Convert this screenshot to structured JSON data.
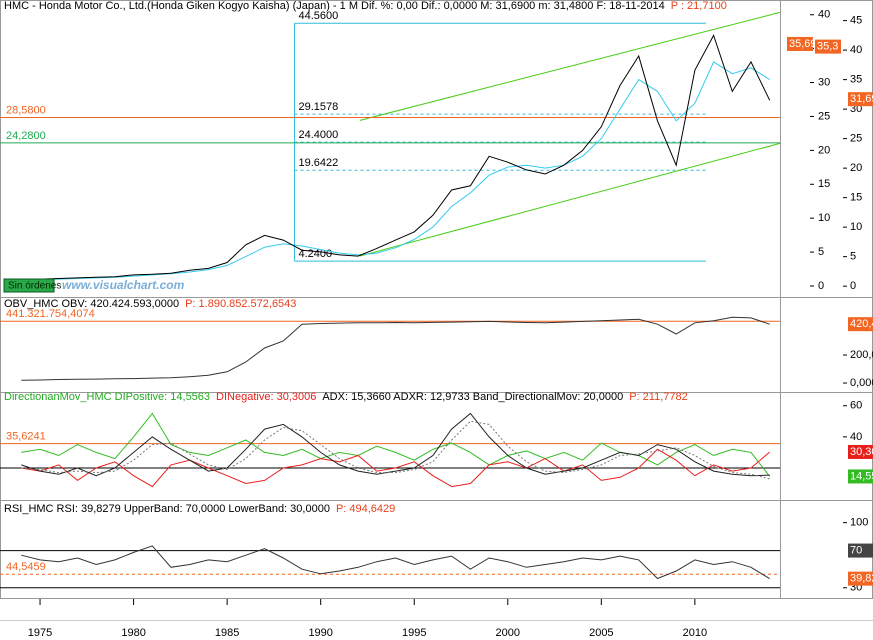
{
  "chart_data": [
    {
      "type": "line",
      "title_parts": [
        {
          "text": "HMC - Honda Motor Co., Ltd.(Honda Giken Kogyo Kaisha) (Japan) - 1 M  Dif. %: 0,00  Dif.: 0,0000  M: 31,6900  m: 31,4800  F: 18-11-2014",
          "color": "#000000"
        },
        {
          "text": "P : 21,7100",
          "color": "#e8401c"
        }
      ],
      "x": [
        1974,
        1975,
        1976,
        1977,
        1978,
        1979,
        1980,
        1981,
        1982,
        1983,
        1984,
        1985,
        1986,
        1987,
        1988,
        1989,
        1990,
        1991,
        1992,
        1993,
        1994,
        1995,
        1996,
        1997,
        1998,
        1999,
        2000,
        2001,
        2002,
        2003,
        2004,
        2005,
        2006,
        2007,
        2008,
        2009,
        2010,
        2011,
        2012,
        2013,
        2014
      ],
      "xlim": [
        1972.86,
        2014.55
      ],
      "series": [
        {
          "color": "#33ccee",
          "values": [
            1.0,
            1.1,
            1.2,
            1.3,
            1.4,
            1.5,
            1.7,
            1.9,
            2.1,
            2.4,
            2.8,
            3.5,
            5.0,
            6.6,
            7.2,
            6.8,
            6.2,
            5.6,
            5.3,
            5.6,
            6.5,
            7.9,
            10,
            13.5,
            15.8,
            18.8,
            20.2,
            20.5,
            20,
            20.5,
            22,
            25,
            30,
            35,
            33,
            28,
            31,
            38,
            36,
            37,
            35
          ]
        },
        {
          "color": "#000000",
          "values": [
            1.0,
            1.2,
            1.3,
            1.4,
            1.5,
            1.6,
            1.9,
            2.0,
            2.2,
            2.7,
            3.0,
            4.0,
            7.0,
            8.6,
            7.8,
            6.1,
            5.8,
            5.3,
            5.1,
            6.4,
            7.8,
            9.2,
            12,
            16.3,
            17,
            22,
            21,
            19.7,
            19,
            20.5,
            23,
            27,
            34,
            39,
            28,
            20.5,
            36.6,
            42.5,
            33,
            38,
            31.5
          ]
        }
      ],
      "ylim": [
        -1.5,
        46.8
      ],
      "yticks": [
        0,
        5,
        10,
        15,
        20,
        25,
        30,
        35,
        40,
        45
      ],
      "y2lim": [
        -1.33,
        40.7
      ],
      "y2ticks": [
        0,
        5,
        10,
        15,
        20,
        25,
        30,
        35,
        40
      ],
      "fib": {
        "x": [
          1988.6,
          2010.6
        ],
        "color": "#33bbdd",
        "levels": [
          {
            "value": 44.56,
            "label": "44.5600"
          },
          {
            "value": 29.1578,
            "label": "29.1578"
          },
          {
            "value": 24.4,
            "label": "24.4000"
          },
          {
            "value": 19.6422,
            "label": "19.6422"
          },
          {
            "value": 4.24,
            "label": "4.2400"
          }
        ]
      },
      "trend_lines": [
        {
          "x": [
            1992.1,
            2014.55
          ],
          "values": [
            28.1,
            46.4
          ],
          "color": "#44cc11"
        },
        {
          "x": [
            1992.1,
            2014.55
          ],
          "values": [
            5.1,
            24.2
          ],
          "color": "#44cc11"
        }
      ],
      "hlines": [
        {
          "value": 28.58,
          "label": "28,5800",
          "color": "#f26522"
        },
        {
          "value": 24.28,
          "label": "24,2800",
          "color": "#22aa55"
        }
      ],
      "markers": [
        {
          "value": 35.69,
          "label": "35,69",
          "axis": "y2",
          "color": "#f26522"
        },
        {
          "value": 35.3,
          "label": "35,3",
          "axis": "y2",
          "color": "#f26522"
        },
        {
          "value": 31.69,
          "label": "31,69",
          "axis": "y",
          "color": "#f26522"
        }
      ],
      "status": "Sin órdenes",
      "watermark": "www.visualchart.com"
    },
    {
      "type": "line",
      "title_parts": [
        {
          "text": "OBV_HMC OBV: 420.424.593,0000",
          "color": "#000000"
        },
        {
          "text": "P: 1.890.852.572,6543",
          "color": "#e8401c"
        }
      ],
      "x": [
        1974,
        1975,
        1976,
        1977,
        1978,
        1979,
        1980,
        1981,
        1982,
        1983,
        1984,
        1985,
        1986,
        1987,
        1988,
        1989,
        1990,
        1991,
        1992,
        1993,
        1994,
        1995,
        1996,
        1997,
        1998,
        1999,
        2000,
        2001,
        2002,
        2003,
        2004,
        2005,
        2006,
        2007,
        2008,
        2009,
        2010,
        2011,
        2012,
        2013,
        2014
      ],
      "xlim": [
        1972.86,
        2014.55
      ],
      "series": [
        {
          "color": "#333333",
          "values": [
            20,
            22,
            25,
            27,
            28,
            30,
            32,
            35,
            38,
            45,
            55,
            80,
            150,
            250,
            300,
            420,
            425,
            428,
            430,
            430,
            432,
            430,
            433,
            435,
            438,
            440,
            436,
            432,
            430,
            435,
            440,
            445,
            450,
            455,
            420,
            350,
            430,
            445,
            470,
            465,
            420
          ]
        }
      ],
      "ylim": [
        -64,
        593
      ],
      "yticks": [
        {
          "value": 0,
          "label": "0,000"
        },
        {
          "value": 200,
          "label": "200,0"
        }
      ],
      "hlines": [
        {
          "value": 441.3217544074,
          "label": "441.321.754,4074",
          "color": "#f26522"
        }
      ],
      "markers": [
        {
          "value": 420.4,
          "label": "420,4",
          "axis": "y",
          "color": "#f26522"
        }
      ]
    },
    {
      "type": "line",
      "title_parts": [
        {
          "text": "DirectionanMov_HMC DIPositive: 14,5563",
          "color": "#22aa22"
        },
        {
          "text": "DINegative: 30,3006",
          "color": "#e8201c"
        },
        {
          "text": "ADX: 15,3660  ADXR: 12,9733  Band_DirectionalMov: 20,0000",
          "color": "#000000"
        },
        {
          "text": "P: 211,7782",
          "color": "#e8401c"
        }
      ],
      "x": [
        1974,
        1975,
        1976,
        1977,
        1978,
        1979,
        1980,
        1981,
        1982,
        1983,
        1984,
        1985,
        1986,
        1987,
        1988,
        1989,
        1990,
        1991,
        1992,
        1993,
        1994,
        1995,
        1996,
        1997,
        1998,
        1999,
        2000,
        2001,
        2002,
        2003,
        2004,
        2005,
        2006,
        2007,
        2008,
        2009,
        2010,
        2011,
        2012,
        2013,
        2014
      ],
      "xlim": [
        1972.86,
        2014.55
      ],
      "series": [
        {
          "color": "#33bb22",
          "values": [
            30,
            32,
            28,
            35,
            30,
            26,
            40,
            55,
            35,
            30,
            28,
            33,
            38,
            30,
            28,
            32,
            26,
            30,
            28,
            34,
            30,
            25,
            32,
            36,
            30,
            22,
            28,
            31,
            26,
            30,
            25,
            36,
            30,
            28,
            22,
            30,
            35,
            28,
            32,
            30,
            14.6
          ]
        },
        {
          "color": "#e8201c",
          "values": [
            20,
            18,
            22,
            12,
            20,
            24,
            15,
            8,
            22,
            25,
            20,
            15,
            10,
            12,
            20,
            22,
            26,
            24,
            28,
            18,
            20,
            24,
            15,
            8,
            10,
            22,
            24,
            20,
            26,
            18,
            22,
            12,
            14,
            20,
            32,
            25,
            15,
            22,
            18,
            20,
            30.3
          ]
        },
        {
          "color": "#222222",
          "values": [
            22,
            18,
            16,
            20,
            15,
            20,
            30,
            40,
            32,
            25,
            18,
            20,
            32,
            45,
            48,
            40,
            30,
            22,
            18,
            16,
            18,
            20,
            28,
            45,
            55,
            40,
            28,
            20,
            16,
            18,
            20,
            25,
            30,
            28,
            35,
            32,
            24,
            18,
            16,
            15,
            15.4
          ]
        },
        {
          "color": "#777777",
          "dashed": true,
          "values": [
            20,
            19,
            17,
            18,
            17,
            18,
            25,
            35,
            36,
            29,
            22,
            19,
            26,
            38,
            46,
            44,
            35,
            26,
            20,
            17,
            17,
            19,
            24,
            38,
            50,
            48,
            34,
            24,
            18,
            17,
            19,
            22,
            28,
            29,
            31,
            33,
            28,
            21,
            17,
            16,
            13.0
          ]
        }
      ],
      "ylim": [
        -0.6,
        65
      ],
      "yticks": [
        40,
        60
      ],
      "hlines": [
        {
          "value": 35.6241,
          "label": "35,6241",
          "color": "#f26522"
        },
        {
          "value": 20,
          "color": "#000000"
        }
      ],
      "markers": [
        {
          "value": 30.3,
          "label": "30,30",
          "axis": "y",
          "color": "#e8201c"
        },
        {
          "value": 14.55,
          "label": "14,55",
          "axis": "y",
          "color": "#33bb22"
        }
      ]
    },
    {
      "type": "line",
      "title_parts": [
        {
          "text": "RSI_HMC RSI: 39,8279  UpperBand: 70,0000  LowerBand: 30,0000",
          "color": "#000000"
        },
        {
          "text": "P: 494,6429",
          "color": "#e8401c"
        }
      ],
      "x": [
        1974,
        1975,
        1976,
        1977,
        1978,
        1979,
        1980,
        1981,
        1982,
        1983,
        1984,
        1985,
        1986,
        1987,
        1988,
        1989,
        1990,
        1991,
        1992,
        1993,
        1994,
        1995,
        1996,
        1997,
        1998,
        1999,
        2000,
        2001,
        2002,
        2003,
        2004,
        2005,
        2006,
        2007,
        2008,
        2009,
        2010,
        2011,
        2012,
        2013,
        2014
      ],
      "xlim": [
        1972.86,
        2014.55
      ],
      "xticks": [
        1975,
        1980,
        1985,
        1990,
        1995,
        2000,
        2005,
        2010
      ],
      "series": [
        {
          "color": "#333333",
          "values": [
            65,
            60,
            58,
            62,
            55,
            60,
            68,
            75,
            52,
            55,
            60,
            58,
            65,
            72,
            62,
            50,
            45,
            48,
            52,
            58,
            62,
            55,
            60,
            64,
            50,
            62,
            58,
            52,
            55,
            58,
            62,
            60,
            64,
            60,
            40,
            48,
            60,
            55,
            58,
            52,
            39.8
          ]
        }
      ],
      "ylim": [
        19,
        119
      ],
      "yticks": [
        30,
        100
      ],
      "hlines": [
        {
          "value": 70,
          "color": "#000000"
        },
        {
          "value": 30,
          "color": "#000000"
        },
        {
          "value": 44.5459,
          "label": "44,5459",
          "color": "#f26522",
          "dashed": true
        }
      ],
      "markers": [
        {
          "value": 70,
          "label": "70",
          "axis": "y",
          "color": "#444444"
        },
        {
          "value": 39.82,
          "label": "39,82",
          "axis": "y",
          "color": "#f26522"
        }
      ]
    }
  ]
}
